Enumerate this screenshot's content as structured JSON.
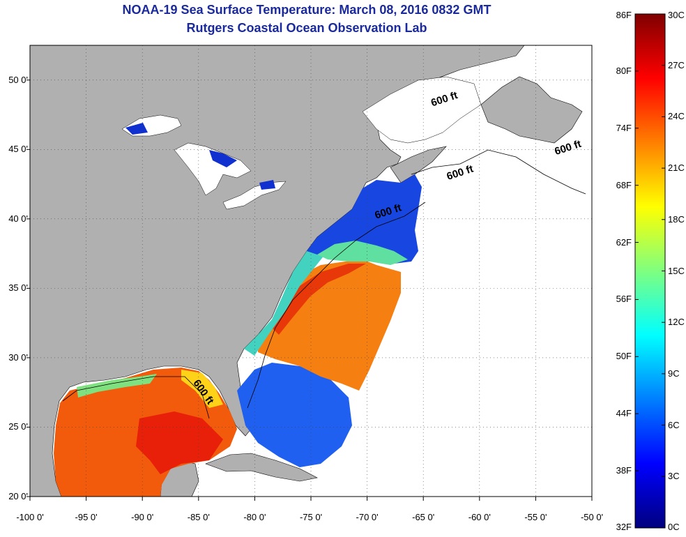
{
  "title": "NOAA-19 Sea Surface Temperature:  March 08, 2016 0832 GMT",
  "subtitle": "Rutgers Coastal Ocean Observation Lab",
  "map": {
    "lon_range": [
      -100,
      -50
    ],
    "lat_range": [
      20,
      52.5
    ],
    "grid": true,
    "land_color": "#b0b0b0",
    "no_data_color": "#ffffff"
  },
  "lat_ticks": [
    {
      "value": 50,
      "label": "50 0'"
    },
    {
      "value": 45,
      "label": "45 0'"
    },
    {
      "value": 40,
      "label": "40 0'"
    },
    {
      "value": 35,
      "label": "35 0'"
    },
    {
      "value": 30,
      "label": "30 0'"
    },
    {
      "value": 25,
      "label": "25 0'"
    },
    {
      "value": 20,
      "label": "20 0'"
    }
  ],
  "lon_ticks": [
    {
      "value": -100,
      "label": "-100 0'"
    },
    {
      "value": -95,
      "label": "-95 0'"
    },
    {
      "value": -90,
      "label": "-90 0'"
    },
    {
      "value": -85,
      "label": "-85 0'"
    },
    {
      "value": -80,
      "label": "-80 0'"
    },
    {
      "value": -75,
      "label": "-75 0'"
    },
    {
      "value": -70,
      "label": "-70 0'"
    },
    {
      "value": -65,
      "label": "-65 0'"
    },
    {
      "value": -60,
      "label": "-60 0'"
    },
    {
      "value": -55,
      "label": "-55 0'"
    },
    {
      "value": -50,
      "label": "-50 0'"
    }
  ],
  "contour_labels": [
    {
      "text": "600 ft",
      "lon": -64.2,
      "lat": 48.1
    },
    {
      "text": "600 ft",
      "lon": -53.2,
      "lat": 44.6
    },
    {
      "text": "600 ft",
      "lon": -62.8,
      "lat": 42.8
    },
    {
      "text": "600 ft",
      "lon": -69.2,
      "lat": 40.0
    },
    {
      "text": "600 ft",
      "lon": -85.5,
      "lat": 28.2
    }
  ],
  "colorbar": {
    "fahrenheit": [
      {
        "value": 86,
        "label": "86F"
      },
      {
        "value": 80,
        "label": "80F"
      },
      {
        "value": 74,
        "label": "74F"
      },
      {
        "value": 68,
        "label": "68F"
      },
      {
        "value": 62,
        "label": "62F"
      },
      {
        "value": 56,
        "label": "56F"
      },
      {
        "value": 50,
        "label": "50F"
      },
      {
        "value": 44,
        "label": "44F"
      },
      {
        "value": 38,
        "label": "38F"
      },
      {
        "value": 32,
        "label": "32F"
      }
    ],
    "celsius": [
      {
        "value": 30,
        "label": "30C"
      },
      {
        "value": 27,
        "label": "27C"
      },
      {
        "value": 24,
        "label": "24C"
      },
      {
        "value": 21,
        "label": "21C"
      },
      {
        "value": 18,
        "label": "18C"
      },
      {
        "value": 15,
        "label": "15C"
      },
      {
        "value": 12,
        "label": "12C"
      },
      {
        "value": 9,
        "label": "9C"
      },
      {
        "value": 6,
        "label": "6C"
      },
      {
        "value": 3,
        "label": "3C"
      },
      {
        "value": 0,
        "label": "0C"
      }
    ],
    "colors": [
      "#00007f",
      "#0000ff",
      "#007fff",
      "#00ffff",
      "#7fff7f",
      "#ffff00",
      "#ff7f00",
      "#ff0000",
      "#7f0000"
    ]
  }
}
